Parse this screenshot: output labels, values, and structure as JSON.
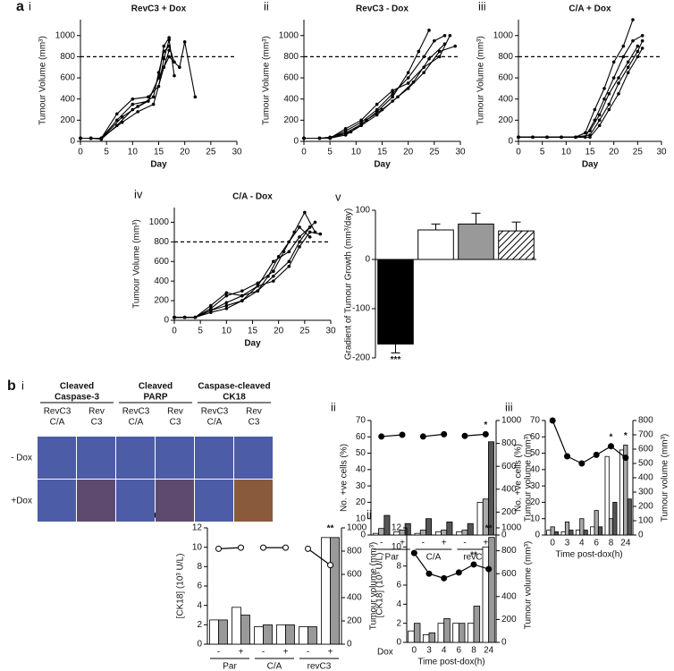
{
  "chart_data": [
    {
      "type": "line",
      "section": "a",
      "panel": "i",
      "title": "RevC3 + Dox",
      "xlabel": "Day",
      "ylabel": "Tumour Volume (mm³)",
      "xlim": [
        0,
        30
      ],
      "xticks": [
        0,
        5,
        10,
        15,
        20,
        25,
        30
      ],
      "ylim": [
        0,
        1150
      ],
      "yticks": [
        0,
        200,
        400,
        600,
        800,
        1000
      ],
      "threshold": 800,
      "series": [
        {
          "color": "#000000",
          "x": [
            0,
            2,
            4,
            7,
            10,
            13,
            15,
            16,
            17,
            18
          ],
          "values": [
            30,
            30,
            30,
            260,
            400,
            420,
            520,
            780,
            960,
            620
          ]
        },
        {
          "color": "#000000",
          "x": [
            0,
            2,
            4,
            7,
            10,
            13,
            15,
            17,
            19,
            20,
            22
          ],
          "values": [
            30,
            30,
            30,
            200,
            350,
            380,
            600,
            800,
            700,
            940,
            420
          ]
        },
        {
          "color": "#000000",
          "x": [
            0,
            2,
            4,
            7,
            10,
            13,
            15,
            16,
            17
          ],
          "values": [
            30,
            30,
            20,
            150,
            300,
            380,
            600,
            900,
            980
          ]
        },
        {
          "color": "#000000",
          "x": [
            0,
            2,
            4,
            8,
            11,
            14,
            15,
            16,
            17,
            18
          ],
          "values": [
            30,
            30,
            25,
            230,
            330,
            420,
            650,
            850,
            900,
            750
          ]
        },
        {
          "color": "#000000",
          "x": [
            0,
            2,
            4,
            8,
            11,
            14,
            16,
            17
          ],
          "values": [
            30,
            30,
            30,
            180,
            280,
            350,
            700,
            860
          ]
        }
      ]
    },
    {
      "type": "line",
      "panel": "ii",
      "title": "RevC3 - Dox",
      "xlabel": "Day",
      "ylabel": "Tumour Volume (mm³)",
      "xlim": [
        0,
        30
      ],
      "xticks": [
        0,
        5,
        10,
        15,
        20,
        25,
        30
      ],
      "ylim": [
        0,
        1150
      ],
      "yticks": [
        0,
        200,
        400,
        600,
        800,
        1000
      ],
      "threshold": 800,
      "series": [
        {
          "color": "#000000",
          "x": [
            0,
            3,
            5,
            8,
            11,
            14,
            17,
            20,
            23,
            25,
            27
          ],
          "values": [
            30,
            30,
            30,
            100,
            180,
            300,
            450,
            600,
            800,
            950,
            1000
          ]
        },
        {
          "color": "#000000",
          "x": [
            0,
            3,
            5,
            8,
            11,
            14,
            17,
            20,
            22,
            24
          ],
          "values": [
            30,
            30,
            40,
            80,
            160,
            280,
            420,
            650,
            850,
            1050
          ]
        },
        {
          "color": "#000000",
          "x": [
            0,
            3,
            5,
            8,
            11,
            14,
            17,
            20,
            23,
            26,
            29
          ],
          "values": [
            30,
            30,
            30,
            60,
            150,
            250,
            380,
            500,
            650,
            850,
            900
          ]
        },
        {
          "color": "#000000",
          "x": [
            0,
            3,
            5,
            8,
            11,
            14,
            17,
            20,
            23,
            26,
            28
          ],
          "values": [
            30,
            30,
            30,
            120,
            200,
            350,
            480,
            550,
            700,
            800,
            1000
          ]
        },
        {
          "color": "#000000",
          "x": [
            0,
            3,
            5,
            9,
            12,
            15,
            18,
            21,
            24,
            27
          ],
          "values": [
            30,
            30,
            30,
            90,
            200,
            300,
            420,
            560,
            780,
            920
          ]
        }
      ]
    },
    {
      "type": "line",
      "panel": "iii",
      "title": "C/A + Dox",
      "xlabel": "Day",
      "ylabel": "Tumour Volume (mm³)",
      "xlim": [
        0,
        30
      ],
      "xticks": [
        0,
        5,
        10,
        15,
        20,
        25,
        30
      ],
      "ylim": [
        0,
        1150
      ],
      "yticks": [
        0,
        200,
        400,
        600,
        800,
        1000
      ],
      "threshold": 800,
      "series": [
        {
          "color": "#000000",
          "x": [
            0,
            3,
            6,
            9,
            12,
            14,
            16,
            18,
            20,
            22,
            24,
            26
          ],
          "values": [
            40,
            40,
            40,
            40,
            40,
            40,
            200,
            400,
            600,
            800,
            950,
            1000
          ]
        },
        {
          "color": "#000000",
          "x": [
            0,
            3,
            6,
            9,
            12,
            14,
            16,
            18,
            20,
            22,
            24
          ],
          "values": [
            40,
            40,
            40,
            40,
            40,
            80,
            300,
            500,
            750,
            900,
            1150
          ]
        },
        {
          "color": "#000000",
          "x": [
            0,
            3,
            6,
            9,
            12,
            15,
            17,
            19,
            21,
            23,
            25,
            26
          ],
          "values": [
            40,
            40,
            40,
            40,
            40,
            60,
            200,
            350,
            550,
            700,
            850,
            950
          ]
        },
        {
          "color": "#000000",
          "x": [
            0,
            3,
            6,
            9,
            12,
            15,
            17,
            19,
            21,
            23,
            25,
            26
          ],
          "values": [
            40,
            40,
            40,
            40,
            40,
            40,
            150,
            300,
            450,
            650,
            800,
            880
          ]
        },
        {
          "color": "#000000",
          "x": [
            0,
            3,
            6,
            9,
            12,
            15,
            17,
            19,
            21,
            23,
            25
          ],
          "values": [
            40,
            40,
            40,
            40,
            40,
            100,
            250,
            450,
            600,
            750,
            900
          ]
        }
      ]
    },
    {
      "type": "line",
      "panel": "iv",
      "title": "C/A - Dox",
      "xlabel": "Day",
      "ylabel": "Tumour Volume (mm³)",
      "xlim": [
        0,
        30
      ],
      "xticks": [
        0,
        5,
        10,
        15,
        20,
        25,
        30
      ],
      "ylim": [
        0,
        1150
      ],
      "yticks": [
        0,
        200,
        400,
        600,
        800,
        1000
      ],
      "threshold": 800,
      "series": [
        {
          "color": "#000000",
          "x": [
            0,
            2,
            4,
            7,
            10,
            13,
            16,
            19,
            21,
            23,
            25,
            27
          ],
          "values": [
            30,
            30,
            30,
            120,
            250,
            300,
            380,
            500,
            700,
            900,
            1100,
            900
          ]
        },
        {
          "color": "#000000",
          "x": [
            0,
            2,
            4,
            7,
            10,
            13,
            16,
            19,
            22,
            24,
            26,
            27
          ],
          "values": [
            30,
            30,
            30,
            150,
            280,
            250,
            300,
            450,
            600,
            800,
            950,
            1000
          ]
        },
        {
          "color": "#000000",
          "x": [
            0,
            2,
            4,
            7,
            10,
            13,
            16,
            19,
            22,
            24,
            26
          ],
          "values": [
            30,
            30,
            30,
            100,
            150,
            200,
            350,
            600,
            700,
            850,
            950
          ]
        },
        {
          "color": "#000000",
          "x": [
            0,
            2,
            4,
            7,
            10,
            13,
            16,
            18,
            20,
            22,
            24,
            26
          ],
          "values": [
            30,
            30,
            30,
            80,
            120,
            200,
            300,
            450,
            650,
            800,
            950,
            850
          ]
        },
        {
          "color": "#000000",
          "x": [
            0,
            2,
            4,
            7,
            10,
            13,
            16,
            19,
            22,
            24,
            26,
            28
          ],
          "values": [
            30,
            30,
            30,
            100,
            180,
            250,
            350,
            400,
            550,
            750,
            900,
            880
          ]
        }
      ]
    },
    {
      "type": "bar",
      "panel": "v",
      "ylabel": "Gradient of Tumour Growth (mm³/day)",
      "categories": [
        null,
        null,
        null,
        null
      ],
      "values": [
        -172,
        60,
        72,
        58
      ],
      "errors": [
        18,
        12,
        22,
        18
      ],
      "colors": [
        "#000000",
        "#ffffff",
        "#999999",
        "#ffffff"
      ],
      "hatch": [
        false,
        false,
        false,
        true
      ],
      "ylim": [
        -200,
        100
      ],
      "yticks": [
        -200,
        -100,
        0,
        100
      ],
      "annotations": [
        {
          "text": "***",
          "at": 0
        }
      ]
    },
    {
      "type": "combo",
      "panel": "ii",
      "ylabel": "No. +ve cells (%)",
      "y2label": "Tumour volume (mm³)",
      "categories": [
        "-",
        "+",
        "-",
        "+",
        "-",
        "+"
      ],
      "groups": [
        "Par",
        "C/A",
        "revC3"
      ],
      "line_segments": "pairs",
      "marker_fill": true,
      "ylim": [
        0,
        70
      ],
      "yticks": [
        0,
        10,
        20,
        30,
        40,
        50,
        60,
        70
      ],
      "y2lim": [
        0,
        1000
      ],
      "y2ticks": [
        0,
        200,
        400,
        600,
        800,
        1000
      ],
      "series": [
        {
          "color": "#ffffff",
          "values": [
            1,
            2,
            1,
            2,
            2,
            20
          ]
        },
        {
          "color": "#aaaaaa",
          "values": [
            4,
            3,
            3,
            3,
            3,
            22
          ]
        },
        {
          "color": "#555555",
          "values": [
            12,
            7,
            10,
            8,
            7,
            57
          ]
        },
        {
          "axis": "y2",
          "color": "#000000",
          "values": [
            860,
            875,
            860,
            880,
            865,
            880
          ]
        }
      ],
      "annotations": [
        {
          "text": "*",
          "at": 5
        }
      ]
    },
    {
      "type": "combo",
      "panel": "iii",
      "ylabel": "No. +ve cells (%)",
      "y2label": "Tumour volume (mm³)",
      "xlabel": "Time post-dox(h)",
      "categories": [
        "0",
        "3",
        "4",
        "6",
        "8",
        "24"
      ],
      "line_segments": "all",
      "marker_fill": true,
      "ylim": [
        0,
        70
      ],
      "yticks": [
        0,
        10,
        20,
        30,
        40,
        50,
        60,
        70
      ],
      "y2lim": [
        0,
        800
      ],
      "y2ticks": [
        0,
        100,
        200,
        300,
        400,
        500,
        600,
        700,
        800
      ],
      "series": [
        {
          "color": "#ffffff",
          "values": [
            3,
            2,
            3,
            5,
            48,
            52
          ]
        },
        {
          "color": "#aaaaaa",
          "values": [
            5,
            8,
            10,
            15,
            10,
            55
          ]
        },
        {
          "color": "#555555",
          "values": [
            2,
            3,
            3,
            5,
            20,
            22
          ]
        },
        {
          "axis": "y2",
          "color": "#000000",
          "values": [
            800,
            550,
            500,
            560,
            620,
            540
          ]
        }
      ],
      "annotations": [
        {
          "text": "*",
          "at": 4
        },
        {
          "text": "*",
          "at": 5
        }
      ]
    },
    {
      "type": "combo",
      "section": "c",
      "panel": "i",
      "ylabel": "[CK18] (10³ U/L)",
      "y2label": "Tumour volume (mm³)",
      "dox_label": "Dox",
      "categories": [
        "-",
        "+",
        "-",
        "+",
        "-",
        "+"
      ],
      "groups": [
        "Par",
        "C/A",
        "revC3"
      ],
      "line_segments": "pairs",
      "marker_fill": false,
      "ylim": [
        0,
        12
      ],
      "yticks": [
        0,
        2,
        4,
        6,
        8,
        10,
        12
      ],
      "y2lim": [
        0,
        1000
      ],
      "y2ticks": [
        0,
        200,
        400,
        600,
        800,
        1000
      ],
      "series": [
        {
          "color": "#ffffff",
          "values": [
            2.5,
            3.8,
            1.8,
            2.0,
            1.8,
            11
          ]
        },
        {
          "color": "#999999",
          "values": [
            2.5,
            3.0,
            2.0,
            2.0,
            1.8,
            11
          ]
        },
        {
          "axis": "y2",
          "color": "#000000",
          "values": [
            820,
            830,
            830,
            830,
            820,
            680
          ]
        }
      ],
      "annotations": [
        {
          "text": "**",
          "at": 5
        }
      ]
    },
    {
      "type": "combo",
      "panel": "ii",
      "ylabel": "[CK18] (10³ U/L)",
      "y2label": "Tumour volume (mm³)",
      "xlabel": "Time post-dox(h)",
      "categories": [
        "0",
        "3",
        "4",
        "6",
        "8",
        "24"
      ],
      "line_segments": "all",
      "marker_fill": true,
      "ylim": [
        0,
        12
      ],
      "yticks": [
        0,
        2,
        4,
        6,
        8,
        10,
        12
      ],
      "y2lim": [
        0,
        1000
      ],
      "y2ticks": [
        0,
        200,
        400,
        600,
        800,
        1000
      ],
      "series": [
        {
          "color": "#ffffff",
          "values": [
            1.2,
            0.8,
            2,
            2,
            2,
            10
          ]
        },
        {
          "color": "#999999",
          "values": [
            2,
            1,
            2.5,
            2,
            3.8,
            11
          ]
        },
        {
          "axis": "y2",
          "color": "#000000",
          "values": [
            780,
            600,
            560,
            610,
            680,
            640
          ]
        }
      ],
      "annotations": [
        {
          "text": "**",
          "at": 4
        },
        {
          "text": "**",
          "at": 5
        }
      ]
    }
  ],
  "image_panel": {
    "section": "b",
    "panel": "i",
    "groups": [
      [
        "Cleaved",
        "Caspase-3"
      ],
      [
        "Cleaved",
        "PARP"
      ],
      [
        "Caspase-cleaved",
        "CK18"
      ]
    ],
    "columns": [
      [
        "RevC3",
        "C/A"
      ],
      [
        "Rev",
        "C3"
      ],
      [
        "RevC3",
        "C/A"
      ],
      [
        "Rev",
        "C3"
      ],
      [
        "RevC3",
        "C/A"
      ],
      [
        "Rev",
        "C3"
      ]
    ],
    "rows": [
      "- Dox",
      "+Dox"
    ]
  }
}
